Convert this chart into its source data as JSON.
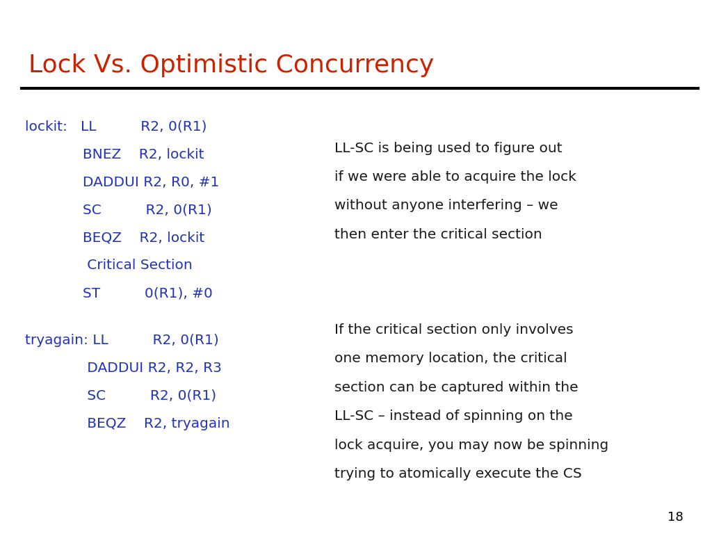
{
  "title": "Lock Vs. Optimistic Concurrency",
  "title_color": "#cc2200",
  "title_fontsize": 26,
  "background_color": "#ffffff",
  "page_number": "18",
  "code_color": "#2233bb",
  "code_fontsize": 14.5,
  "desc_color": "#1a1a1a",
  "desc_fontsize": 14.5,
  "block1_lines": [
    "lockit:   LL          R2, 0(R1)",
    "             BNEZ    R2, lockit",
    "             DADDUI R2, R0, #1",
    "             SC          R2, 0(R1)",
    "             BEQZ    R2, lockit",
    "              Critical Section",
    "             ST          0(R1), #0"
  ],
  "block2_lines": [
    "tryagain: LL          R2, 0(R1)",
    "              DADDUI R2, R2, R3",
    "              SC          R2, 0(R1)",
    "              BEQZ    R2, tryagain"
  ],
  "desc1_lines": [
    "LL-SC is being used to figure out",
    "if we were able to acquire the lock",
    "without anyone interfering – we",
    "then enter the critical section"
  ],
  "desc2_lines": [
    "If the critical section only involves",
    "one memory location, the critical",
    "section can be captured within the",
    "LL-SC – instead of spinning on the",
    "lock acquire, you may now be spinning",
    "trying to atomically execute the CS"
  ]
}
